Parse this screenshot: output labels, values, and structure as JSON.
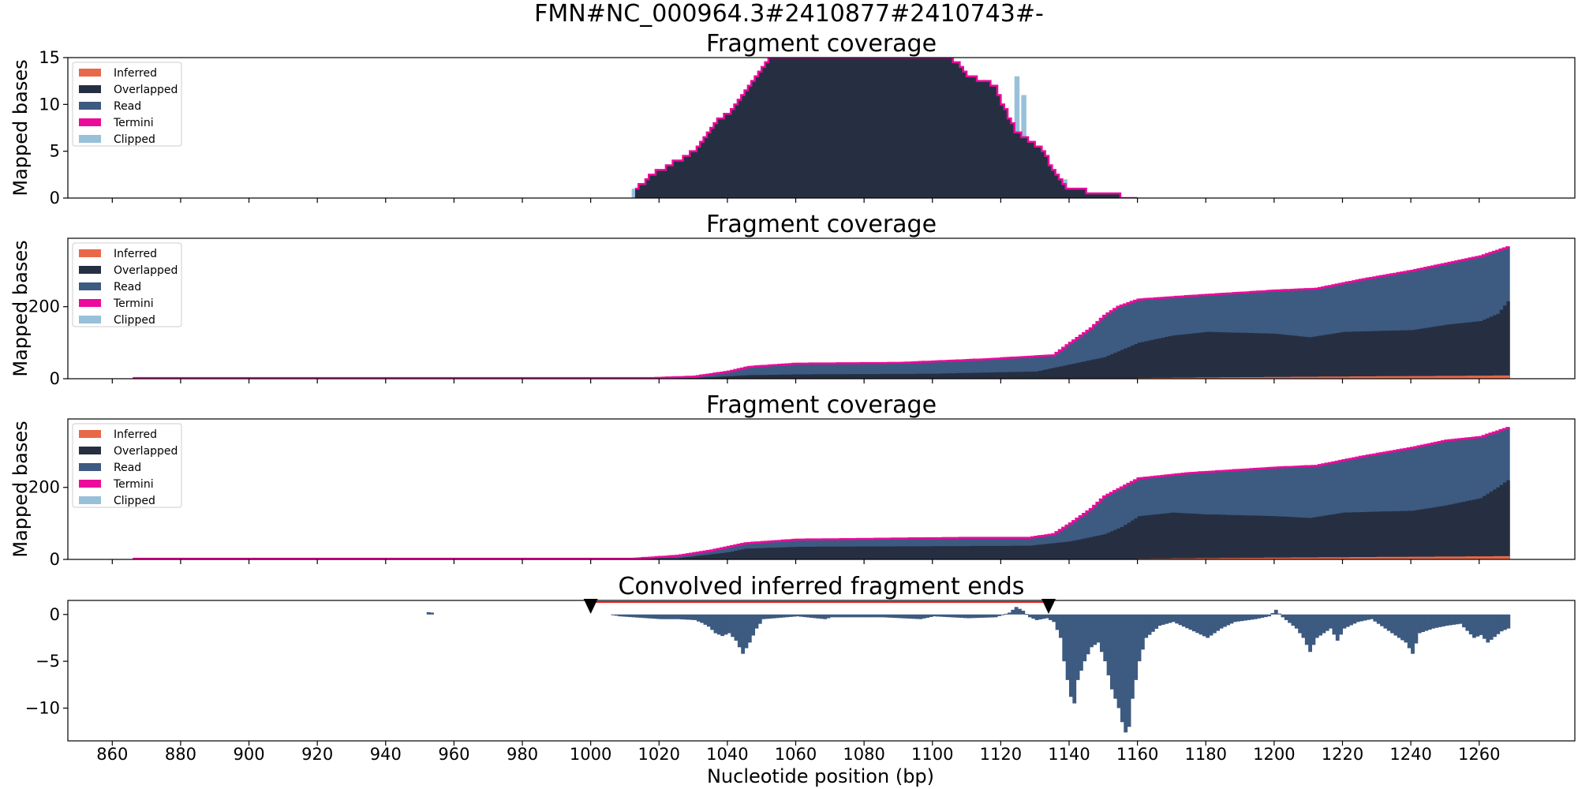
{
  "figure_title": "FMN#NC_000964.3#2410877#2410743#-",
  "x_axis_label": "Nucleotide position (bp)",
  "y_axis_label": "Mapped bases",
  "colors": {
    "Inferred": "#e8694a",
    "Overlapped": "#262f42",
    "Read": "#3d5a80",
    "Termini": "#ec0a9b",
    "Clipped": "#98c1d9",
    "marker": "#000000",
    "range_line": "#e31a1c"
  },
  "chart_data": [
    {
      "type": "area",
      "title": "Fragment coverage",
      "ylabel": "Mapped bases",
      "xlim": [
        847,
        1288
      ],
      "ylim": [
        0,
        15
      ],
      "yticks": [
        0,
        5,
        10,
        15
      ],
      "legend": [
        "Inferred",
        "Overlapped",
        "Read",
        "Termini",
        "Clipped"
      ],
      "legend_position": "top-left",
      "series": [
        {
          "name": "Overlapped",
          "points": [
            [
              1013,
              1
            ],
            [
              1016,
              2
            ],
            [
              1020,
              3
            ],
            [
              1030,
              5
            ],
            [
              1034,
              7
            ],
            [
              1036,
              8
            ],
            [
              1040,
              9
            ],
            [
              1044,
              11
            ],
            [
              1048,
              13
            ],
            [
              1050,
              14
            ],
            [
              1052,
              15
            ],
            [
              1104,
              15
            ],
            [
              1108,
              14
            ],
            [
              1110,
              13
            ],
            [
              1118,
              12
            ],
            [
              1120,
              10
            ],
            [
              1124,
              7
            ],
            [
              1128,
              6
            ],
            [
              1132,
              5
            ],
            [
              1135,
              3
            ],
            [
              1139,
              1
            ],
            [
              1159,
              0
            ]
          ]
        },
        {
          "name": "Clipped",
          "points": [
            [
              1012,
              1
            ],
            [
              1124,
              13
            ],
            [
              1126,
              11
            ],
            [
              1138,
              2
            ]
          ]
        }
      ]
    },
    {
      "type": "area",
      "title": "Fragment coverage",
      "ylabel": "Mapped bases",
      "xlim": [
        847,
        1288
      ],
      "ylim": [
        0,
        390
      ],
      "yticks": [
        0,
        200
      ],
      "legend": [
        "Inferred",
        "Overlapped",
        "Read",
        "Termini",
        "Clipped"
      ],
      "legend_position": "top-left",
      "series": [
        {
          "name": "Read",
          "points": [
            [
              866,
              2
            ],
            [
              952,
              2
            ],
            [
              1018,
              2
            ],
            [
              1030,
              6
            ],
            [
              1040,
              20
            ],
            [
              1046,
              33
            ],
            [
              1060,
              42
            ],
            [
              1090,
              44
            ],
            [
              1115,
              54
            ],
            [
              1135,
              65
            ],
            [
              1140,
              100
            ],
            [
              1146,
              140
            ],
            [
              1150,
              175
            ],
            [
              1154,
              200
            ],
            [
              1160,
              220
            ],
            [
              1175,
              230
            ],
            [
              1200,
              245
            ],
            [
              1212,
              250
            ],
            [
              1225,
              275
            ],
            [
              1240,
              300
            ],
            [
              1250,
              320
            ],
            [
              1260,
              340
            ],
            [
              1268,
              365
            ]
          ]
        },
        {
          "name": "Overlapped",
          "points": [
            [
              866,
              1
            ],
            [
              952,
              1
            ],
            [
              1030,
              2
            ],
            [
              1046,
              10
            ],
            [
              1060,
              12
            ],
            [
              1100,
              14
            ],
            [
              1130,
              20
            ],
            [
              1140,
              40
            ],
            [
              1150,
              60
            ],
            [
              1155,
              80
            ],
            [
              1160,
              100
            ],
            [
              1170,
              120
            ],
            [
              1180,
              130
            ],
            [
              1200,
              125
            ],
            [
              1210,
              115
            ],
            [
              1220,
              130
            ],
            [
              1240,
              135
            ],
            [
              1250,
              150
            ],
            [
              1260,
              160
            ],
            [
              1265,
              180
            ],
            [
              1268,
              215
            ]
          ]
        },
        {
          "name": "Inferred",
          "points": [
            [
              1160,
              2
            ],
            [
              1200,
              5
            ],
            [
              1268,
              9
            ]
          ]
        }
      ]
    },
    {
      "type": "area",
      "title": "Fragment coverage",
      "ylabel": "Mapped bases",
      "xlim": [
        847,
        1288
      ],
      "ylim": [
        0,
        390
      ],
      "yticks": [
        0,
        200
      ],
      "legend": [
        "Inferred",
        "Overlapped",
        "Read",
        "Termini",
        "Clipped"
      ],
      "legend_position": "top-left",
      "series": [
        {
          "name": "Read",
          "points": [
            [
              866,
              2
            ],
            [
              952,
              2
            ],
            [
              1012,
              2
            ],
            [
              1025,
              10
            ],
            [
              1035,
              25
            ],
            [
              1045,
              45
            ],
            [
              1060,
              55
            ],
            [
              1090,
              58
            ],
            [
              1110,
              60
            ],
            [
              1128,
              60
            ],
            [
              1135,
              70
            ],
            [
              1140,
              100
            ],
            [
              1146,
              140
            ],
            [
              1150,
              175
            ],
            [
              1155,
              200
            ],
            [
              1160,
              225
            ],
            [
              1175,
              240
            ],
            [
              1200,
              255
            ],
            [
              1212,
              260
            ],
            [
              1225,
              285
            ],
            [
              1240,
              310
            ],
            [
              1250,
              330
            ],
            [
              1260,
              340
            ],
            [
              1268,
              365
            ]
          ]
        },
        {
          "name": "Overlapped",
          "points": [
            [
              866,
              1
            ],
            [
              952,
              1
            ],
            [
              1025,
              3
            ],
            [
              1040,
              20
            ],
            [
              1045,
              30
            ],
            [
              1060,
              35
            ],
            [
              1128,
              38
            ],
            [
              1140,
              50
            ],
            [
              1150,
              70
            ],
            [
              1155,
              90
            ],
            [
              1160,
              120
            ],
            [
              1170,
              130
            ],
            [
              1180,
              125
            ],
            [
              1200,
              120
            ],
            [
              1210,
              115
            ],
            [
              1220,
              130
            ],
            [
              1240,
              135
            ],
            [
              1250,
              150
            ],
            [
              1260,
              170
            ],
            [
              1265,
              200
            ],
            [
              1268,
              220
            ]
          ]
        },
        {
          "name": "Inferred",
          "points": [
            [
              1160,
              2
            ],
            [
              1200,
              5
            ],
            [
              1268,
              9
            ]
          ]
        }
      ]
    },
    {
      "type": "bar",
      "title": "Convolved inferred fragment ends",
      "ylabel": "",
      "xlim": [
        847,
        1288
      ],
      "ylim": [
        -13.5,
        1.5
      ],
      "yticks": [
        0,
        -5,
        -10
      ],
      "markers_x": [
        1000,
        1134
      ],
      "range_line": [
        1000,
        1134
      ],
      "profile": [
        [
          952,
          0.25
        ],
        [
          953,
          0.2
        ],
        [
          1005,
          0
        ],
        [
          1008,
          -0.2
        ],
        [
          1012,
          -0.3
        ],
        [
          1020,
          -0.5
        ],
        [
          1025,
          -0.5
        ],
        [
          1030,
          -0.6
        ],
        [
          1032,
          -0.9
        ],
        [
          1034,
          -1.3
        ],
        [
          1036,
          -2.0
        ],
        [
          1038,
          -2.3
        ],
        [
          1040,
          -2.0
        ],
        [
          1042,
          -2.8
        ],
        [
          1044,
          -4.2
        ],
        [
          1046,
          -3.0
        ],
        [
          1048,
          -1.5
        ],
        [
          1050,
          -0.5
        ],
        [
          1060,
          -0.2
        ],
        [
          1068,
          -0.5
        ],
        [
          1070,
          -0.3
        ],
        [
          1085,
          -0.3
        ],
        [
          1096,
          -0.5
        ],
        [
          1100,
          -0.2
        ],
        [
          1110,
          -0.4
        ],
        [
          1118,
          -0.3
        ],
        [
          1122,
          0.2
        ],
        [
          1124,
          0.8
        ],
        [
          1126,
          0.4
        ],
        [
          1128,
          -0.3
        ],
        [
          1130,
          -0.6
        ],
        [
          1133,
          -0.4
        ],
        [
          1135,
          -0.8
        ],
        [
          1137,
          -2.5
        ],
        [
          1138,
          -5.0
        ],
        [
          1139,
          -7.0
        ],
        [
          1140,
          -8.8
        ],
        [
          1141,
          -9.5
        ],
        [
          1142,
          -7.0
        ],
        [
          1144,
          -5.0
        ],
        [
          1146,
          -3.5
        ],
        [
          1148,
          -3.0
        ],
        [
          1150,
          -5.0
        ],
        [
          1152,
          -8.0
        ],
        [
          1154,
          -10.0
        ],
        [
          1155,
          -11.5
        ],
        [
          1156,
          -12.6
        ],
        [
          1157,
          -12.0
        ],
        [
          1158,
          -9.0
        ],
        [
          1160,
          -5.0
        ],
        [
          1162,
          -2.5
        ],
        [
          1166,
          -1.2
        ],
        [
          1170,
          -0.8
        ],
        [
          1176,
          -1.8
        ],
        [
          1180,
          -2.5
        ],
        [
          1184,
          -1.5
        ],
        [
          1188,
          -0.8
        ],
        [
          1194,
          -0.5
        ],
        [
          1198,
          -0.2
        ],
        [
          1200,
          0.5
        ],
        [
          1202,
          -0.3
        ],
        [
          1206,
          -1.5
        ],
        [
          1208,
          -2.5
        ],
        [
          1210,
          -4.0
        ],
        [
          1212,
          -2.5
        ],
        [
          1214,
          -2.0
        ],
        [
          1216,
          -1.5
        ],
        [
          1218,
          -2.8
        ],
        [
          1220,
          -1.5
        ],
        [
          1224,
          -0.8
        ],
        [
          1228,
          -0.5
        ],
        [
          1232,
          -1.5
        ],
        [
          1236,
          -2.5
        ],
        [
          1238,
          -3.0
        ],
        [
          1240,
          -4.2
        ],
        [
          1242,
          -2.0
        ],
        [
          1246,
          -1.5
        ],
        [
          1250,
          -1.2
        ],
        [
          1254,
          -1.0
        ],
        [
          1258,
          -2.5
        ],
        [
          1260,
          -2.2
        ],
        [
          1262,
          -3.0
        ],
        [
          1266,
          -1.8
        ],
        [
          1268,
          -1.5
        ]
      ]
    }
  ],
  "x_ticks": [
    860,
    880,
    900,
    920,
    940,
    960,
    980,
    1000,
    1020,
    1040,
    1060,
    1080,
    1100,
    1120,
    1140,
    1160,
    1180,
    1200,
    1220,
    1240,
    1260
  ]
}
